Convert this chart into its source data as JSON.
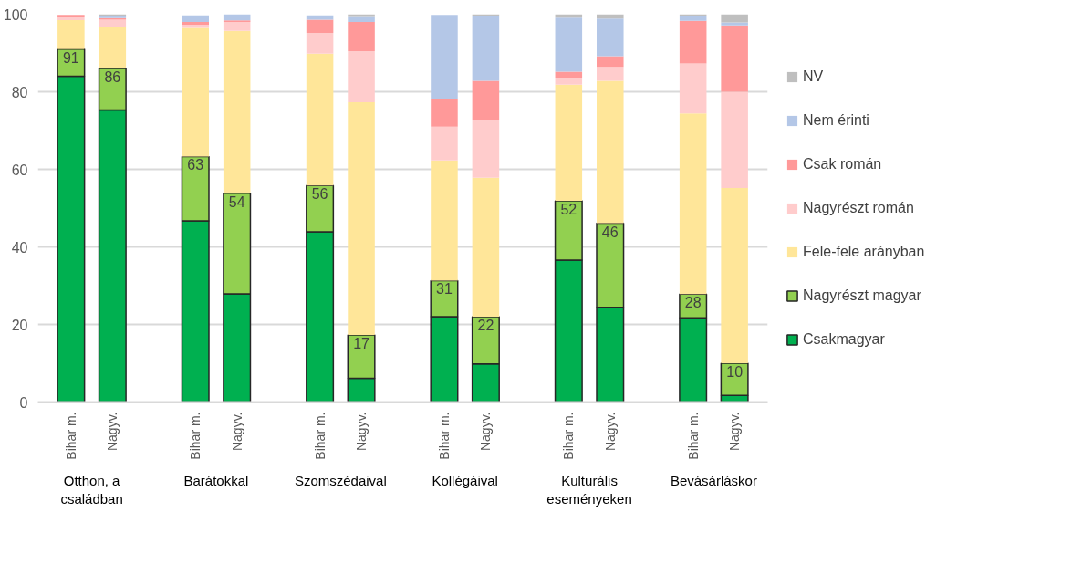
{
  "chart_data": {
    "type": "bar",
    "stacked": true,
    "categories": [
      "Bihar m.",
      "Nagyv.",
      "Bihar m.",
      "Nagyv.",
      "Bihar m.",
      "Nagyv.",
      "Bihar m.",
      "Nagyv.",
      "Bihar m.",
      "Nagyv.",
      "Bihar m.",
      "Nagyv."
    ],
    "annotations": [
      "Otthon, a családban",
      "Barátokkal",
      "Szomszédaival",
      "Kollégáival",
      "Kulturális eseményeken",
      "Bevásárláskor",
      {
        "text": "91",
        "y": 91
      },
      {
        "text": "86",
        "y": 86
      },
      {
        "text": "63",
        "y": 63.3
      },
      {
        "text": "54",
        "y": 53.8
      },
      {
        "text": "56",
        "y": 55.8
      },
      {
        "text": "17",
        "y": 17.3
      },
      {
        "text": "31",
        "y": 31.3
      },
      {
        "text": "22",
        "y": 22
      },
      {
        "text": "52",
        "y": 51.9
      },
      {
        "text": "46",
        "y": 46.1
      },
      {
        "text": "28",
        "y": 27.8
      },
      {
        "text": "10",
        "y": 10
      }
    ],
    "series": [
      {
        "name": "Csakmagyar",
        "color": "#00b050",
        "values": [
          84,
          75.3,
          46.7,
          27.9,
          43.9,
          6.1,
          22,
          9.8,
          36.6,
          24.4,
          21.7,
          1.7
        ]
      },
      {
        "name": "Nagyrészt magyar",
        "color": "#92d050",
        "values": [
          7,
          10.7,
          16.6,
          25.9,
          11.9,
          11.2,
          9.3,
          12.2,
          15.3,
          21.7,
          6.1,
          8.3
        ]
      },
      {
        "name": "Fele-fele arányban",
        "color": "#ffe699",
        "values": [
          7.5,
          10.6,
          33.2,
          41.9,
          34,
          60,
          31,
          35.8,
          29.9,
          36.7,
          46.6,
          45.2
        ]
      },
      {
        "name": "Nagyrészt román",
        "color": "#ffcccc",
        "values": [
          0.7,
          2,
          0.8,
          2.3,
          5.4,
          13.2,
          8.7,
          14.9,
          1.7,
          3.6,
          12.9,
          24.8
        ]
      },
      {
        "name": "Csak román",
        "color": "#ff9999",
        "values": [
          0.6,
          0.4,
          0.7,
          0.4,
          3.4,
          7.5,
          7,
          10.1,
          1.7,
          2.8,
          11,
          17.1
        ]
      },
      {
        "name": "Nem érinti",
        "color": "#b4c7e7",
        "values": [
          0,
          0.5,
          1.7,
          1.6,
          1.1,
          1.3,
          21.8,
          16.7,
          13.9,
          9.7,
          1.1,
          0.8
        ]
      },
      {
        "name": "NV",
        "color": "#bfbfbf",
        "values": [
          null,
          0.5,
          null,
          0,
          null,
          0.7,
          null,
          0.5,
          0.9,
          1.1,
          0.6,
          2.1
        ]
      }
    ],
    "ylim": [
      0,
      100
    ],
    "yticks": [
      0,
      20,
      40,
      60,
      80,
      100
    ],
    "grid": "y",
    "legend": "right"
  }
}
